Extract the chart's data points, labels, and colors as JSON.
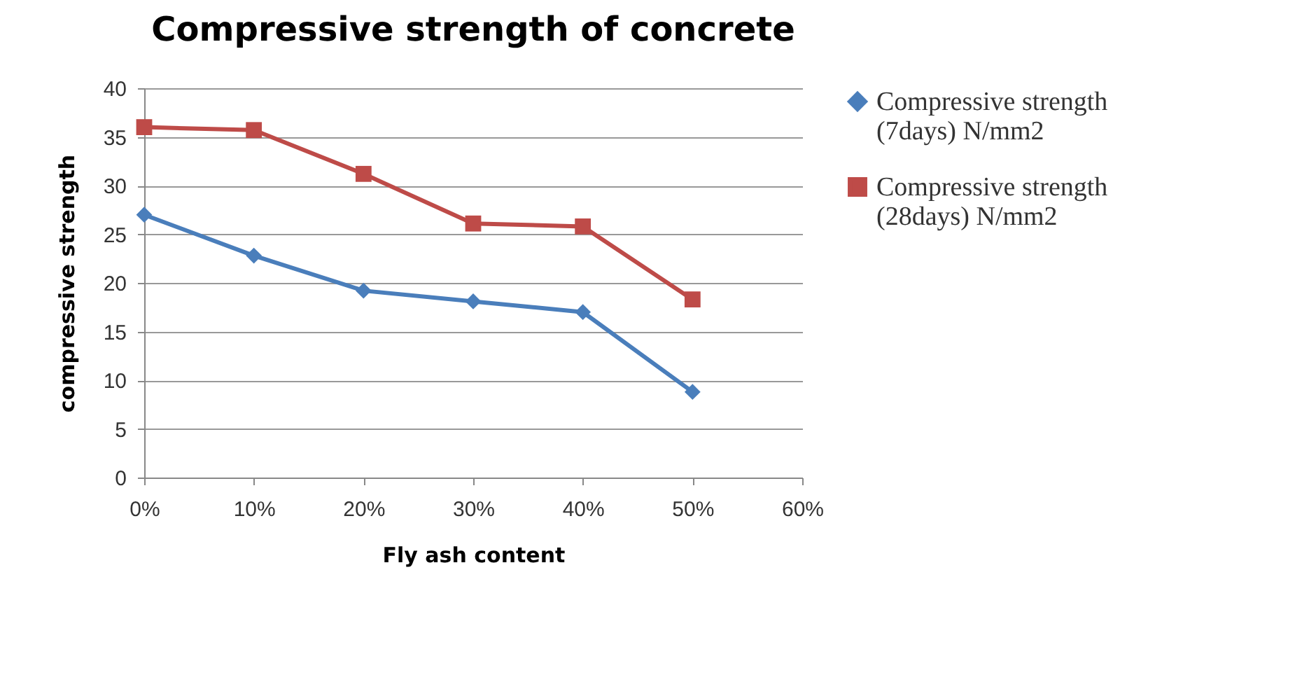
{
  "chart_data": {
    "type": "line",
    "title": "Compressive strength of concrete",
    "xlabel": "Fly ash content",
    "ylabel": "compressive strength",
    "categories": [
      "0%",
      "10%",
      "20%",
      "30%",
      "40%",
      "50%",
      "60%"
    ],
    "series": [
      {
        "name": "Compressive strength (7days) N/mm2",
        "color": "#4a7ebb",
        "marker": "diamond",
        "values": [
          27,
          22.8,
          19.2,
          18.1,
          17,
          8.8,
          null
        ]
      },
      {
        "name": "Compressive strength (28days) N/mm2",
        "color": "#be4b48",
        "marker": "square",
        "values": [
          36,
          35.7,
          31.2,
          26.1,
          25.8,
          18.3,
          null
        ]
      }
    ],
    "ylim": [
      0,
      40
    ],
    "yticks": [
      0,
      5,
      10,
      15,
      20,
      25,
      30,
      35,
      40
    ],
    "grid": "y",
    "legend": "right"
  }
}
